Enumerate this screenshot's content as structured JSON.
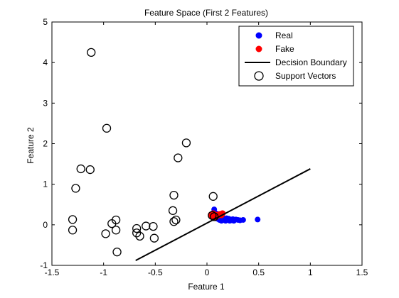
{
  "chart_data": {
    "type": "scatter",
    "title": "Feature Space (First 2 Features)",
    "xlabel": "Feature 1",
    "ylabel": "Feature 2",
    "xlim": [
      -1.5,
      1.5
    ],
    "ylim": [
      -1,
      5
    ],
    "xticks": [
      -1.5,
      -1,
      -0.5,
      0,
      0.5,
      1,
      1.5
    ],
    "yticks": [
      -1,
      0,
      1,
      2,
      3,
      4,
      5
    ],
    "xtick_labels": [
      "-1.5",
      "-1",
      "-0.5",
      "0",
      "0.5",
      "1",
      "1.5"
    ],
    "ytick_labels": [
      "-1",
      "0",
      "1",
      "2",
      "3",
      "4",
      "5"
    ],
    "grid": false,
    "legend_position": "top-right",
    "legend": [
      "Real",
      "Fake",
      "Decision Boundary",
      "Support Vectors"
    ],
    "colors": {
      "real": "#0000ff",
      "fake": "#ff0000",
      "boundary": "#000000",
      "support": "#000000"
    },
    "series": [
      {
        "name": "Real",
        "marker": "filled-circle",
        "points": [
          [
            0.07,
            0.38
          ],
          [
            0.09,
            0.28
          ],
          [
            0.1,
            0.15
          ],
          [
            0.12,
            0.12
          ],
          [
            0.13,
            0.2
          ],
          [
            0.14,
            0.1
          ],
          [
            0.15,
            0.18
          ],
          [
            0.16,
            0.12
          ],
          [
            0.17,
            0.14
          ],
          [
            0.18,
            0.1
          ],
          [
            0.19,
            0.16
          ],
          [
            0.2,
            0.12
          ],
          [
            0.21,
            0.15
          ],
          [
            0.22,
            0.1
          ],
          [
            0.23,
            0.13
          ],
          [
            0.24,
            0.11
          ],
          [
            0.25,
            0.14
          ],
          [
            0.26,
            0.1
          ],
          [
            0.27,
            0.12
          ],
          [
            0.28,
            0.13
          ],
          [
            0.3,
            0.12
          ],
          [
            0.32,
            0.11
          ],
          [
            0.35,
            0.12
          ],
          [
            0.49,
            0.13
          ]
        ]
      },
      {
        "name": "Fake",
        "marker": "filled-circle",
        "points": [
          [
            0.04,
            0.25
          ],
          [
            0.05,
            0.2
          ],
          [
            0.06,
            0.28
          ],
          [
            0.07,
            0.22
          ],
          [
            0.08,
            0.18
          ],
          [
            0.09,
            0.24
          ],
          [
            0.1,
            0.22
          ],
          [
            0.12,
            0.26
          ],
          [
            0.14,
            0.24
          ],
          [
            0.15,
            0.28
          ]
        ]
      },
      {
        "name": "Decision Boundary",
        "marker": "line",
        "points": [
          [
            -0.69,
            -0.88
          ],
          [
            1.0,
            1.38
          ]
        ]
      },
      {
        "name": "Support Vectors",
        "marker": "open-circle",
        "points": [
          [
            -1.12,
            4.25
          ],
          [
            -0.97,
            2.38
          ],
          [
            -0.2,
            2.02
          ],
          [
            -1.22,
            1.38
          ],
          [
            -1.13,
            1.36
          ],
          [
            -0.28,
            1.65
          ],
          [
            -1.27,
            0.9
          ],
          [
            -0.32,
            0.73
          ],
          [
            0.06,
            0.7
          ],
          [
            -0.33,
            0.35
          ],
          [
            -0.3,
            0.12
          ],
          [
            -0.32,
            0.08
          ],
          [
            -1.3,
            0.13
          ],
          [
            -1.3,
            -0.13
          ],
          [
            -0.88,
            0.12
          ],
          [
            -0.92,
            0.03
          ],
          [
            -0.88,
            -0.13
          ],
          [
            -0.98,
            -0.22
          ],
          [
            -0.68,
            -0.09
          ],
          [
            -0.68,
            -0.2
          ],
          [
            -0.65,
            -0.28
          ],
          [
            -0.59,
            -0.03
          ],
          [
            -0.52,
            -0.04
          ],
          [
            -0.51,
            -0.33
          ],
          [
            -0.87,
            -0.67
          ],
          [
            0.05,
            0.23
          ],
          [
            0.07,
            0.2
          ]
        ]
      }
    ]
  }
}
